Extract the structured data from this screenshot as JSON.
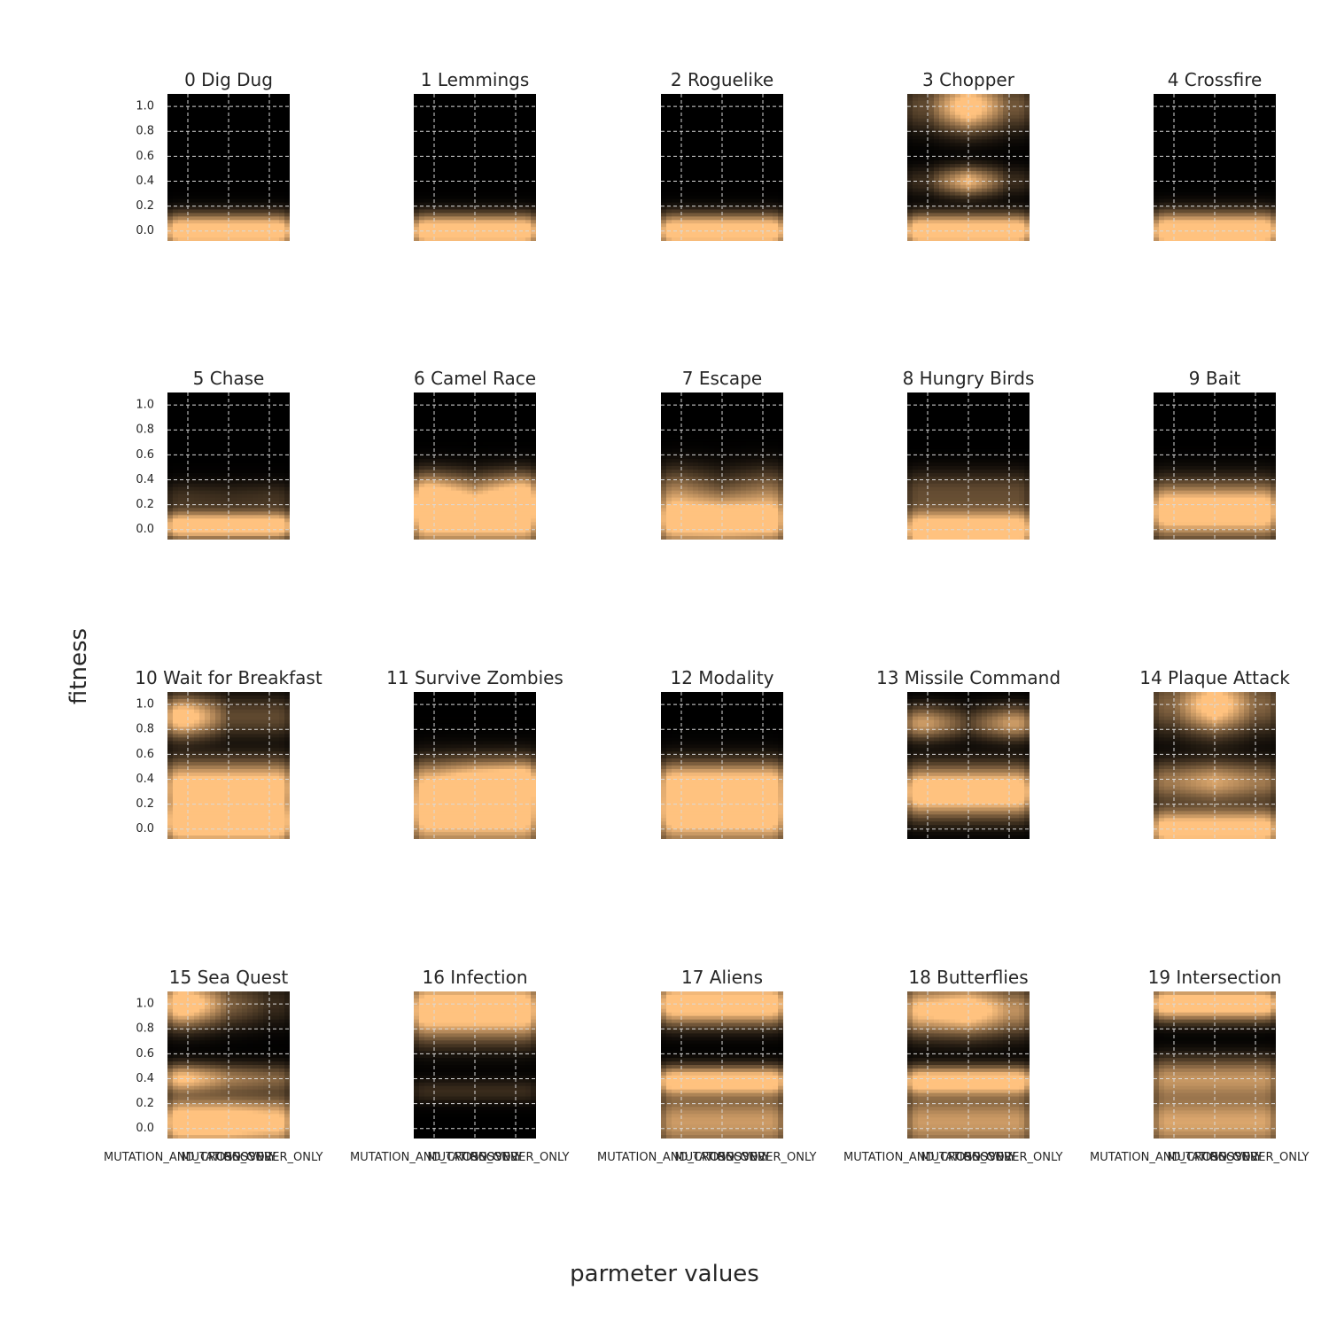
{
  "figure": {
    "xlabel": "parmeter values",
    "ylabel": "fitness"
  },
  "chart_data": {
    "type": "heatmap",
    "description_of_values": "density of fitness per parameter value",
    "x_categories": [
      "MUTATION_AND_CROSSOVER",
      "MUTATION_ONLY",
      "CROSSOVER_ONLY"
    ],
    "y_ticks": [
      "0.0",
      "0.2",
      "0.4",
      "0.6",
      "0.8",
      "1.0"
    ],
    "ylim": [
      -0.08,
      1.1
    ],
    "grid": true,
    "colors": {
      "background": "#000000",
      "peak": "#ffc27f",
      "mid": "#c0703f",
      "grid": "#d9d9d9"
    },
    "panels": [
      {
        "title": "0 Dig Dug",
        "bands": [
          {
            "y": 0.0,
            "w": 0.08,
            "a": [
              1,
              1,
              1
            ]
          }
        ]
      },
      {
        "title": "1 Lemmings",
        "bands": [
          {
            "y": 0.0,
            "w": 0.08,
            "a": [
              1,
              1,
              1
            ]
          }
        ]
      },
      {
        "title": "2 Roguelike",
        "bands": [
          {
            "y": 0.0,
            "w": 0.08,
            "a": [
              1,
              1,
              1
            ]
          }
        ]
      },
      {
        "title": "3 Chopper",
        "bands": [
          {
            "y": 1.0,
            "w": 0.12,
            "a": [
              0.2,
              1,
              0.25
            ]
          },
          {
            "y": 0.4,
            "w": 0.07,
            "a": [
              0.1,
              0.7,
              0.1
            ]
          },
          {
            "y": 0.0,
            "w": 0.08,
            "a": [
              1,
              1,
              1
            ]
          }
        ]
      },
      {
        "title": "4 Crossfire",
        "bands": [
          {
            "y": 0.0,
            "w": 0.09,
            "a": [
              1,
              1,
              1
            ]
          }
        ]
      },
      {
        "title": "5 Chase",
        "bands": [
          {
            "y": 0.03,
            "w": 0.07,
            "a": [
              1,
              1,
              1
            ]
          },
          {
            "y": 0.25,
            "w": 0.08,
            "a": [
              0.12,
              0.1,
              0.12
            ]
          }
        ]
      },
      {
        "title": "6 Camel Race",
        "bands": [
          {
            "y": 0.1,
            "w": 0.14,
            "a": [
              1,
              1,
              1
            ]
          },
          {
            "y": 0.3,
            "w": 0.1,
            "a": [
              0.6,
              0.25,
              0.6
            ]
          }
        ]
      },
      {
        "title": "7 Escape",
        "bands": [
          {
            "y": 0.07,
            "w": 0.12,
            "a": [
              0.95,
              1,
              0.9
            ]
          },
          {
            "y": 0.3,
            "w": 0.12,
            "a": [
              0.35,
              0.15,
              0.3
            ]
          }
        ]
      },
      {
        "title": "8 Hungry Birds",
        "bands": [
          {
            "y": 0.0,
            "w": 0.1,
            "a": [
              1,
              1,
              1
            ]
          },
          {
            "y": 0.3,
            "w": 0.1,
            "a": [
              0.2,
              0.2,
              0.2
            ]
          }
        ]
      },
      {
        "title": "9 Bait",
        "bands": [
          {
            "y": 0.15,
            "w": 0.13,
            "a": [
              1,
              1,
              1
            ]
          }
        ]
      },
      {
        "title": "10 Wait for Breakfast",
        "bands": [
          {
            "y": 0.9,
            "w": 0.1,
            "a": [
              0.9,
              0.2,
              0.2
            ]
          },
          {
            "y": 0.35,
            "w": 0.12,
            "a": [
              0.85,
              0.85,
              0.85
            ]
          },
          {
            "y": 0.05,
            "w": 0.12,
            "a": [
              1,
              1,
              1
            ]
          }
        ]
      },
      {
        "title": "11 Survive Zombies",
        "bands": [
          {
            "y": 0.15,
            "w": 0.18,
            "a": [
              1,
              1,
              1
            ]
          },
          {
            "y": 0.4,
            "w": 0.1,
            "a": [
              0.35,
              0.6,
              0.7
            ]
          }
        ]
      },
      {
        "title": "12 Modality",
        "bands": [
          {
            "y": 0.15,
            "w": 0.17,
            "a": [
              1,
              1,
              1
            ]
          },
          {
            "y": 0.4,
            "w": 0.09,
            "a": [
              0.5,
              0.5,
              0.5
            ]
          }
        ]
      },
      {
        "title": "13 Missile Command",
        "bands": [
          {
            "y": 0.3,
            "w": 0.12,
            "a": [
              1,
              1,
              1
            ]
          },
          {
            "y": 0.85,
            "w": 0.08,
            "a": [
              0.55,
              0.15,
              0.55
            ]
          }
        ]
      },
      {
        "title": "14 Plaque Attack",
        "bands": [
          {
            "y": 1.0,
            "w": 0.14,
            "a": [
              0.3,
              1,
              0.3
            ]
          },
          {
            "y": 0.38,
            "w": 0.1,
            "a": [
              0.4,
              0.6,
              0.4
            ]
          },
          {
            "y": 0.0,
            "w": 0.1,
            "a": [
              0.9,
              0.9,
              0.9
            ]
          }
        ]
      },
      {
        "title": "15 Sea Quest",
        "bands": [
          {
            "y": 1.0,
            "w": 0.11,
            "a": [
              1,
              0.3,
              0.1
            ]
          },
          {
            "y": 0.4,
            "w": 0.07,
            "a": [
              0.75,
              0.4,
              0.3
            ]
          },
          {
            "y": 0.05,
            "w": 0.12,
            "a": [
              1,
              1,
              0.85
            ]
          }
        ]
      },
      {
        "title": "16 Infection",
        "bands": [
          {
            "y": 0.95,
            "w": 0.14,
            "a": [
              1,
              1,
              1
            ]
          },
          {
            "y": 0.3,
            "w": 0.06,
            "a": [
              0.1,
              0.1,
              0.1
            ]
          }
        ]
      },
      {
        "title": "17 Aliens",
        "bands": [
          {
            "y": 1.0,
            "w": 0.1,
            "a": [
              1,
              1,
              1
            ]
          },
          {
            "y": 0.38,
            "w": 0.07,
            "a": [
              0.95,
              0.95,
              0.95
            ]
          },
          {
            "y": 0.05,
            "w": 0.14,
            "a": [
              0.55,
              0.55,
              0.55
            ]
          }
        ]
      },
      {
        "title": "18 Butterflies",
        "bands": [
          {
            "y": 0.95,
            "w": 0.12,
            "a": [
              0.8,
              1,
              0.5
            ]
          },
          {
            "y": 0.38,
            "w": 0.07,
            "a": [
              0.95,
              0.95,
              0.95
            ]
          },
          {
            "y": 0.05,
            "w": 0.14,
            "a": [
              0.55,
              0.55,
              0.55
            ]
          }
        ]
      },
      {
        "title": "19 Intersection",
        "bands": [
          {
            "y": 1.0,
            "w": 0.08,
            "a": [
              1,
              1,
              1
            ]
          },
          {
            "y": 0.4,
            "w": 0.1,
            "a": [
              0.5,
              0.5,
              0.5
            ]
          },
          {
            "y": 0.05,
            "w": 0.14,
            "a": [
              0.6,
              0.6,
              0.6
            ]
          }
        ]
      }
    ]
  }
}
